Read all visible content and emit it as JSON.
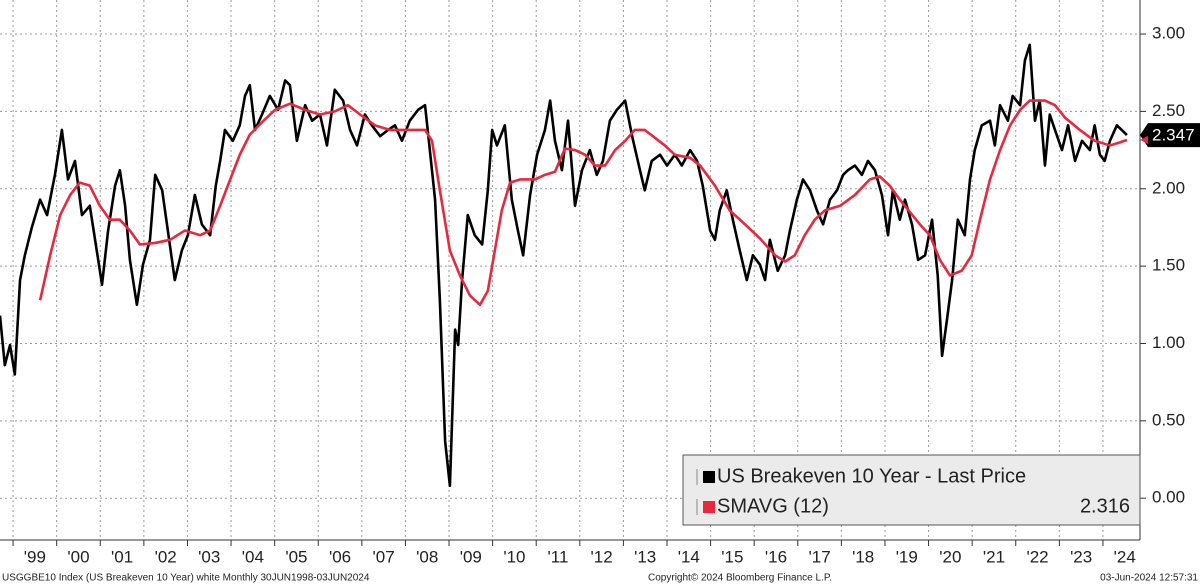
{
  "chart_data": {
    "type": "line",
    "series": [
      {
        "name": "US Breakeven 10 Year - Last Price",
        "color": "#000000",
        "last_label": "2.347",
        "x": [
          1998.7,
          1998.81,
          1998.93,
          1999.04,
          1999.16,
          1999.27,
          1999.43,
          1999.62,
          1999.78,
          1999.96,
          2000.12,
          2000.26,
          2000.42,
          2000.58,
          2000.76,
          2000.92,
          2001.04,
          2001.18,
          2001.34,
          2001.45,
          2001.57,
          2001.68,
          2001.84,
          2001.98,
          2002.14,
          2002.26,
          2002.42,
          2002.55,
          2002.71,
          2002.87,
          2003.01,
          2003.17,
          2003.33,
          2003.52,
          2003.65,
          2003.75,
          2003.86,
          2004.04,
          2004.2,
          2004.32,
          2004.43,
          2004.55,
          2004.71,
          2004.89,
          2005.08,
          2005.24,
          2005.35,
          2005.51,
          2005.7,
          2005.86,
          2006.04,
          2006.2,
          2006.38,
          2006.57,
          2006.73,
          2006.89,
          2007.07,
          2007.23,
          2007.42,
          2007.6,
          2007.76,
          2007.92,
          2008.1,
          2008.29,
          2008.45,
          2008.56,
          2008.68,
          2008.79,
          2008.91,
          2009.02,
          2009.14,
          2009.21,
          2009.3,
          2009.43,
          2009.59,
          2009.76,
          2009.89,
          2009.99,
          2010.1,
          2010.28,
          2010.44,
          2010.58,
          2010.7,
          2010.86,
          2011.02,
          2011.2,
          2011.32,
          2011.43,
          2011.59,
          2011.73,
          2011.89,
          2012.05,
          2012.23,
          2012.39,
          2012.53,
          2012.69,
          2012.85,
          2013.04,
          2013.2,
          2013.38,
          2013.49,
          2013.65,
          2013.84,
          2014.0,
          2014.18,
          2014.34,
          2014.53,
          2014.69,
          2014.82,
          2014.99,
          2015.1,
          2015.21,
          2015.37,
          2015.51,
          2015.67,
          2015.83,
          2015.97,
          2016.13,
          2016.25,
          2016.36,
          2016.54,
          2016.71,
          2016.82,
          2016.98,
          2017.12,
          2017.28,
          2017.44,
          2017.58,
          2017.74,
          2017.9,
          2018.04,
          2018.15,
          2018.31,
          2018.47,
          2018.61,
          2018.77,
          2018.93,
          2019.07,
          2019.18,
          2019.34,
          2019.46,
          2019.62,
          2019.76,
          2019.92,
          2020.08,
          2020.21,
          2020.31,
          2020.42,
          2020.54,
          2020.67,
          2020.83,
          2020.95,
          2021.06,
          2021.22,
          2021.41,
          2021.52,
          2021.64,
          2021.82,
          2021.93,
          2022.1,
          2022.21,
          2022.32,
          2022.44,
          2022.55,
          2022.67,
          2022.78,
          2022.9,
          2023.06,
          2023.2,
          2023.36,
          2023.52,
          2023.7,
          2023.81,
          2023.93,
          2024.04,
          2024.16,
          2024.32,
          2024.43,
          2024.55
        ],
        "values": [
          1.18,
          0.86,
          0.99,
          0.8,
          1.41,
          1.57,
          1.75,
          1.93,
          1.83,
          2.09,
          2.38,
          2.06,
          2.18,
          1.83,
          1.89,
          1.6,
          1.38,
          1.73,
          2.02,
          2.12,
          1.89,
          1.54,
          1.25,
          1.51,
          1.67,
          2.09,
          1.99,
          1.73,
          1.41,
          1.6,
          1.7,
          1.96,
          1.77,
          1.7,
          2.02,
          2.18,
          2.38,
          2.31,
          2.41,
          2.6,
          2.67,
          2.38,
          2.48,
          2.6,
          2.51,
          2.7,
          2.67,
          2.31,
          2.54,
          2.44,
          2.48,
          2.28,
          2.64,
          2.57,
          2.38,
          2.28,
          2.48,
          2.41,
          2.34,
          2.38,
          2.41,
          2.31,
          2.44,
          2.51,
          2.54,
          2.25,
          1.93,
          1.28,
          0.37,
          0.08,
          1.09,
          0.99,
          1.41,
          1.83,
          1.7,
          1.64,
          1.99,
          2.38,
          2.28,
          2.41,
          1.93,
          1.73,
          1.57,
          1.96,
          2.22,
          2.38,
          2.57,
          2.31,
          2.12,
          2.44,
          1.89,
          2.12,
          2.25,
          2.09,
          2.18,
          2.44,
          2.51,
          2.57,
          2.34,
          2.12,
          1.99,
          2.18,
          2.22,
          2.15,
          2.22,
          2.15,
          2.25,
          2.18,
          2.02,
          1.73,
          1.67,
          1.86,
          1.99,
          1.8,
          1.6,
          1.41,
          1.57,
          1.51,
          1.41,
          1.67,
          1.47,
          1.57,
          1.73,
          1.93,
          2.06,
          1.99,
          1.86,
          1.77,
          1.93,
          1.99,
          2.09,
          2.12,
          2.15,
          2.09,
          2.18,
          2.12,
          1.96,
          1.7,
          1.99,
          1.8,
          1.93,
          1.77,
          1.54,
          1.57,
          1.8,
          1.44,
          0.92,
          1.15,
          1.41,
          1.8,
          1.7,
          2.06,
          2.25,
          2.41,
          2.44,
          2.28,
          2.54,
          2.44,
          2.6,
          2.54,
          2.83,
          2.93,
          2.44,
          2.57,
          2.15,
          2.48,
          2.38,
          2.25,
          2.41,
          2.18,
          2.31,
          2.25,
          2.41,
          2.22,
          2.18,
          2.31,
          2.41,
          2.38,
          2.347
        ]
      },
      {
        "name": "SMAVG (12)",
        "color": "#e8283f",
        "last_label": "2.316",
        "x": [
          1999.62,
          1999.85,
          2000.08,
          2000.31,
          2000.53,
          2000.76,
          2000.99,
          2001.22,
          2001.45,
          2001.68,
          2001.91,
          2002.26,
          2002.6,
          2002.94,
          2003.29,
          2003.52,
          2003.75,
          2003.98,
          2004.2,
          2004.43,
          2004.71,
          2005.01,
          2005.35,
          2005.7,
          2006.04,
          2006.38,
          2006.68,
          2006.96,
          2007.3,
          2007.65,
          2008.1,
          2008.45,
          2008.61,
          2008.79,
          2009.02,
          2009.25,
          2009.48,
          2009.71,
          2009.89,
          2010.05,
          2010.21,
          2010.4,
          2010.63,
          2010.97,
          2011.2,
          2011.43,
          2011.66,
          2011.89,
          2012.12,
          2012.35,
          2012.58,
          2012.81,
          2013.04,
          2013.26,
          2013.49,
          2013.72,
          2013.95,
          2014.18,
          2014.53,
          2014.76,
          2015.1,
          2015.44,
          2015.79,
          2016.13,
          2016.48,
          2016.71,
          2016.93,
          2017.16,
          2017.39,
          2017.62,
          2017.97,
          2018.31,
          2018.65,
          2018.88,
          2019.11,
          2019.34,
          2019.57,
          2019.8,
          2020.03,
          2020.26,
          2020.49,
          2020.76,
          2020.99,
          2021.18,
          2021.41,
          2021.64,
          2021.87,
          2022.1,
          2022.32,
          2022.67,
          2022.9,
          2023.13,
          2023.47,
          2023.81,
          2024.16,
          2024.39,
          2024.55
        ],
        "values": [
          1.28,
          1.57,
          1.83,
          1.96,
          2.04,
          2.02,
          1.89,
          1.8,
          1.8,
          1.73,
          1.64,
          1.65,
          1.67,
          1.73,
          1.7,
          1.73,
          1.89,
          2.06,
          2.22,
          2.35,
          2.43,
          2.51,
          2.55,
          2.51,
          2.48,
          2.5,
          2.54,
          2.48,
          2.41,
          2.38,
          2.38,
          2.38,
          2.31,
          1.99,
          1.6,
          1.44,
          1.31,
          1.25,
          1.34,
          1.6,
          1.86,
          2.04,
          2.06,
          2.06,
          2.09,
          2.11,
          2.26,
          2.25,
          2.22,
          2.15,
          2.15,
          2.25,
          2.31,
          2.38,
          2.38,
          2.33,
          2.28,
          2.22,
          2.2,
          2.15,
          2.02,
          1.86,
          1.77,
          1.68,
          1.57,
          1.53,
          1.57,
          1.7,
          1.8,
          1.86,
          1.89,
          1.96,
          2.06,
          2.08,
          2.02,
          1.93,
          1.85,
          1.77,
          1.7,
          1.54,
          1.44,
          1.47,
          1.57,
          1.8,
          2.06,
          2.25,
          2.41,
          2.51,
          2.57,
          2.57,
          2.54,
          2.46,
          2.38,
          2.31,
          2.28,
          2.3,
          2.316
        ]
      }
    ],
    "xlim": [
      1998.7,
      2024.85
    ],
    "xticks": [
      {
        "value": 1999,
        "label": "'99"
      },
      {
        "value": 2000,
        "label": "'00"
      },
      {
        "value": 2001,
        "label": "'01"
      },
      {
        "value": 2002,
        "label": "'02"
      },
      {
        "value": 2003,
        "label": "'03"
      },
      {
        "value": 2004,
        "label": "'04"
      },
      {
        "value": 2005,
        "label": "'05"
      },
      {
        "value": 2006,
        "label": "'06"
      },
      {
        "value": 2007,
        "label": "'07"
      },
      {
        "value": 2008,
        "label": "'08"
      },
      {
        "value": 2009,
        "label": "'09"
      },
      {
        "value": 2010,
        "label": "'10"
      },
      {
        "value": 2011,
        "label": "'11"
      },
      {
        "value": 2012,
        "label": "'12"
      },
      {
        "value": 2013,
        "label": "'13"
      },
      {
        "value": 2014,
        "label": "'14"
      },
      {
        "value": 2015,
        "label": "'15"
      },
      {
        "value": 2016,
        "label": "'16"
      },
      {
        "value": 2017,
        "label": "'17"
      },
      {
        "value": 2018,
        "label": "'18"
      },
      {
        "value": 2019,
        "label": "'19"
      },
      {
        "value": 2020,
        "label": "'20"
      },
      {
        "value": 2021,
        "label": "'21"
      },
      {
        "value": 2022,
        "label": "'22"
      },
      {
        "value": 2023,
        "label": "'23"
      },
      {
        "value": 2024,
        "label": "'24"
      }
    ],
    "ylim": [
      -0.27,
      3.22
    ],
    "yticks": [
      {
        "value": 0,
        "label": "0.00"
      },
      {
        "value": 0.5,
        "label": "0.50"
      },
      {
        "value": 1,
        "label": "1.00"
      },
      {
        "value": 1.5,
        "label": "1.50"
      },
      {
        "value": 2,
        "label": "2.00"
      },
      {
        "value": 2.5,
        "label": "2.50"
      },
      {
        "value": 3,
        "label": "3.00"
      }
    ],
    "grid": true,
    "legend": "lower right",
    "footer": {
      "left": "USGGBE10 Index (US Breakeven 10 Year) white  Monthly 30JUN1998-03JUN2024",
      "center": "Copyright© 2024 Bloomberg Finance L.P.",
      "right": "03-Jun-2024 12:57:31"
    }
  }
}
